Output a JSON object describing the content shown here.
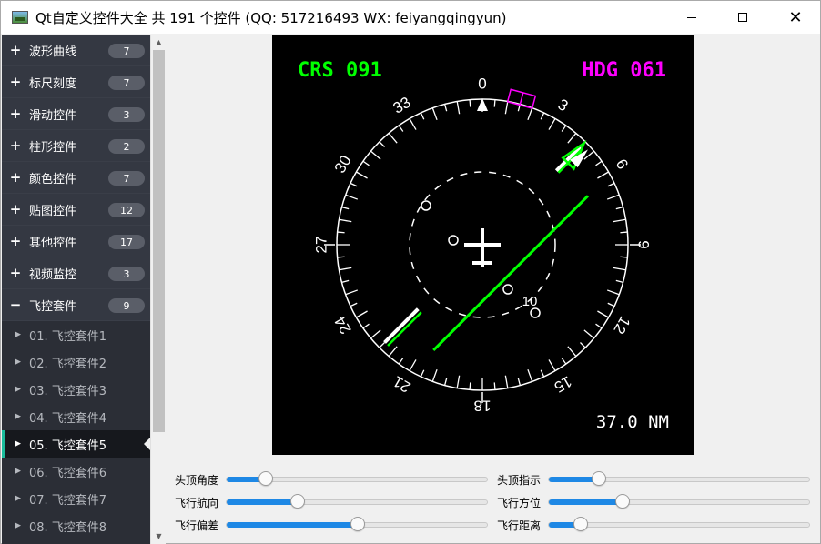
{
  "window": {
    "title": "Qt自定义控件大全 共 191 个控件 (QQ: 517216493 WX: feiyangqingyun)"
  },
  "sidebar": {
    "groups": [
      {
        "sign": "+",
        "label": "波形曲线",
        "count": "7"
      },
      {
        "sign": "+",
        "label": "标尺刻度",
        "count": "7"
      },
      {
        "sign": "+",
        "label": "滑动控件",
        "count": "3"
      },
      {
        "sign": "+",
        "label": "柱形控件",
        "count": "2"
      },
      {
        "sign": "+",
        "label": "颜色控件",
        "count": "7"
      },
      {
        "sign": "+",
        "label": "贴图控件",
        "count": "12"
      },
      {
        "sign": "+",
        "label": "其他控件",
        "count": "17"
      },
      {
        "sign": "+",
        "label": "视频监控",
        "count": "3"
      },
      {
        "sign": "−",
        "label": "飞控套件",
        "count": "9"
      }
    ],
    "children": [
      "01. 飞控套件1",
      "02. 飞控套件2",
      "03. 飞控套件3",
      "04. 飞控套件4",
      "05. 飞控套件5",
      "06. 飞控套件6",
      "07. 飞控套件7",
      "08. 飞控套件8"
    ],
    "active_child_index": 4
  },
  "instrument": {
    "crs_text": "CRS 091",
    "hdg_text": "HDG 061",
    "distance_text": "37.0 NM",
    "heading_deg": 0,
    "course_deg": 45,
    "deviation_label": "10",
    "compass_labels": [
      "0",
      "3",
      "6",
      "9",
      "12",
      "15",
      "18",
      "21",
      "24",
      "27",
      "30",
      "33"
    ],
    "colors": {
      "crs": "#00ff00",
      "hdg": "#ff00ff",
      "scale": "#ffffff",
      "course": "#00ff00"
    }
  },
  "controls": {
    "sliders": [
      {
        "label": "头顶角度",
        "value": 0.15
      },
      {
        "label": "头顶指示",
        "value": 0.19
      },
      {
        "label": "飞行航向",
        "value": 0.27
      },
      {
        "label": "飞行方位",
        "value": 0.28
      },
      {
        "label": "飞行偏差",
        "value": 0.5
      },
      {
        "label": "飞行距离",
        "value": 0.12
      }
    ]
  }
}
